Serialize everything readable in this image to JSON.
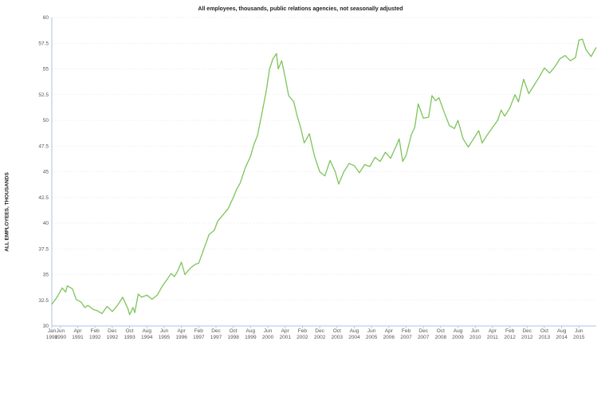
{
  "chart_data": {
    "type": "line",
    "title": "All employees, thousands, public relations agencies, not seasonally adjusted",
    "xlabel": "",
    "ylabel": "ALL EMPLOYEES, THOUSANDS",
    "ylim": [
      30,
      60
    ],
    "yticks": [
      "30",
      "32.5",
      "35",
      "37.5",
      "40",
      "42.5",
      "45",
      "47.5",
      "50",
      "52.5",
      "55",
      "57.5",
      "60"
    ],
    "xlim": [
      "1990-01",
      "2016-04"
    ],
    "xticks": [
      {
        "t": "1990-01",
        "m": "Jan",
        "y": "1990"
      },
      {
        "t": "1990-06",
        "m": "Jun",
        "y": "1990"
      },
      {
        "t": "1991-04",
        "m": "Apr",
        "y": "1991"
      },
      {
        "t": "1992-02",
        "m": "Feb",
        "y": "1992"
      },
      {
        "t": "1992-12",
        "m": "Dec",
        "y": "1992"
      },
      {
        "t": "1993-10",
        "m": "Oct",
        "y": "1993"
      },
      {
        "t": "1994-08",
        "m": "Aug",
        "y": "1994"
      },
      {
        "t": "1995-06",
        "m": "Jun",
        "y": "1995"
      },
      {
        "t": "1996-04",
        "m": "Apr",
        "y": "1996"
      },
      {
        "t": "1997-02",
        "m": "Feb",
        "y": "1997"
      },
      {
        "t": "1997-12",
        "m": "Dec",
        "y": "1997"
      },
      {
        "t": "1998-10",
        "m": "Oct",
        "y": "1998"
      },
      {
        "t": "1999-08",
        "m": "Aug",
        "y": "1999"
      },
      {
        "t": "2000-06",
        "m": "Jun",
        "y": "2000"
      },
      {
        "t": "2001-04",
        "m": "Apr",
        "y": "2001"
      },
      {
        "t": "2002-02",
        "m": "Feb",
        "y": "2002"
      },
      {
        "t": "2002-12",
        "m": "Dec",
        "y": "2002"
      },
      {
        "t": "2003-10",
        "m": "Oct",
        "y": "2003"
      },
      {
        "t": "2004-08",
        "m": "Aug",
        "y": "2004"
      },
      {
        "t": "2005-06",
        "m": "Jun",
        "y": "2005"
      },
      {
        "t": "2006-04",
        "m": "Apr",
        "y": "2006"
      },
      {
        "t": "2007-02",
        "m": "Feb",
        "y": "2007"
      },
      {
        "t": "2007-12",
        "m": "Dec",
        "y": "2007"
      },
      {
        "t": "2008-10",
        "m": "Oct",
        "y": "2008"
      },
      {
        "t": "2009-08",
        "m": "Aug",
        "y": "2009"
      },
      {
        "t": "2010-06",
        "m": "Jun",
        "y": "2010"
      },
      {
        "t": "2011-04",
        "m": "Apr",
        "y": "2011"
      },
      {
        "t": "2012-02",
        "m": "Feb",
        "y": "2012"
      },
      {
        "t": "2012-12",
        "m": "Dec",
        "y": "2012"
      },
      {
        "t": "2013-10",
        "m": "Oct",
        "y": "2013"
      },
      {
        "t": "2014-08",
        "m": "Aug",
        "y": "2014"
      },
      {
        "t": "2015-06",
        "m": "Jun",
        "y": "2015"
      }
    ],
    "grid": true,
    "series": [
      {
        "color": "#7dc45a",
        "points": [
          [
            "1990-01",
            32.1
          ],
          [
            "1990-04",
            32.8
          ],
          [
            "1990-07",
            33.7
          ],
          [
            "1990-09",
            33.3
          ],
          [
            "1990-10",
            33.9
          ],
          [
            "1991-01",
            33.6
          ],
          [
            "1991-03",
            32.6
          ],
          [
            "1991-06",
            32.3
          ],
          [
            "1991-08",
            31.8
          ],
          [
            "1991-10",
            32.0
          ],
          [
            "1992-01",
            31.6
          ],
          [
            "1992-03",
            31.5
          ],
          [
            "1992-06",
            31.2
          ],
          [
            "1992-09",
            31.9
          ],
          [
            "1992-12",
            31.4
          ],
          [
            "1993-03",
            32.0
          ],
          [
            "1993-06",
            32.8
          ],
          [
            "1993-09",
            31.7
          ],
          [
            "1993-10",
            31.1
          ],
          [
            "1993-12",
            31.8
          ],
          [
            "1994-01",
            31.3
          ],
          [
            "1994-03",
            33.1
          ],
          [
            "1994-05",
            32.8
          ],
          [
            "1994-08",
            33.0
          ],
          [
            "1994-11",
            32.6
          ],
          [
            "1995-02",
            33.0
          ],
          [
            "1995-05",
            33.9
          ],
          [
            "1995-08",
            34.6
          ],
          [
            "1995-10",
            35.1
          ],
          [
            "1995-12",
            34.8
          ],
          [
            "1996-02",
            35.4
          ],
          [
            "1996-04",
            36.2
          ],
          [
            "1996-06",
            35.0
          ],
          [
            "1996-09",
            35.6
          ],
          [
            "1996-12",
            36.0
          ],
          [
            "1997-02",
            36.1
          ],
          [
            "1997-05",
            37.5
          ],
          [
            "1997-08",
            38.9
          ],
          [
            "1997-11",
            39.3
          ],
          [
            "1998-01",
            40.2
          ],
          [
            "1998-04",
            40.8
          ],
          [
            "1998-07",
            41.4
          ],
          [
            "1998-10",
            42.5
          ],
          [
            "1998-12",
            43.3
          ],
          [
            "1999-02",
            43.9
          ],
          [
            "1999-05",
            45.4
          ],
          [
            "1999-08",
            46.5
          ],
          [
            "1999-10",
            47.7
          ],
          [
            "1999-12",
            48.5
          ],
          [
            "2000-02",
            50.2
          ],
          [
            "2000-05",
            52.8
          ],
          [
            "2000-07",
            55.0
          ],
          [
            "2000-09",
            56.0
          ],
          [
            "2000-11",
            56.5
          ],
          [
            "2000-12",
            55.0
          ],
          [
            "2001-02",
            55.8
          ],
          [
            "2001-04",
            54.2
          ],
          [
            "2001-06",
            52.4
          ],
          [
            "2001-09",
            51.8
          ],
          [
            "2001-11",
            50.4
          ],
          [
            "2002-01",
            49.3
          ],
          [
            "2002-03",
            47.8
          ],
          [
            "2002-06",
            48.7
          ],
          [
            "2002-09",
            46.5
          ],
          [
            "2002-12",
            45.0
          ],
          [
            "2003-03",
            44.6
          ],
          [
            "2003-06",
            46.1
          ],
          [
            "2003-09",
            45.0
          ],
          [
            "2003-11",
            43.8
          ],
          [
            "2004-02",
            45.0
          ],
          [
            "2004-05",
            45.8
          ],
          [
            "2004-08",
            45.6
          ],
          [
            "2004-11",
            44.9
          ],
          [
            "2005-02",
            45.7
          ],
          [
            "2005-05",
            45.5
          ],
          [
            "2005-08",
            46.4
          ],
          [
            "2005-11",
            46.0
          ],
          [
            "2006-02",
            46.9
          ],
          [
            "2006-05",
            46.3
          ],
          [
            "2006-08",
            47.4
          ],
          [
            "2006-10",
            48.2
          ],
          [
            "2006-12",
            46.0
          ],
          [
            "2007-02",
            46.6
          ],
          [
            "2007-05",
            48.6
          ],
          [
            "2007-07",
            49.3
          ],
          [
            "2007-09",
            51.6
          ],
          [
            "2007-12",
            50.2
          ],
          [
            "2008-03",
            50.3
          ],
          [
            "2008-05",
            52.4
          ],
          [
            "2008-07",
            51.9
          ],
          [
            "2008-09",
            52.2
          ],
          [
            "2008-12",
            50.8
          ],
          [
            "2009-03",
            49.5
          ],
          [
            "2009-06",
            49.2
          ],
          [
            "2009-08",
            50.0
          ],
          [
            "2009-11",
            48.2
          ],
          [
            "2010-02",
            47.4
          ],
          [
            "2010-05",
            48.2
          ],
          [
            "2010-08",
            49.0
          ],
          [
            "2010-10",
            47.8
          ],
          [
            "2011-01",
            48.6
          ],
          [
            "2011-04",
            49.3
          ],
          [
            "2011-07",
            50.0
          ],
          [
            "2011-09",
            51.0
          ],
          [
            "2011-11",
            50.4
          ],
          [
            "2012-02",
            51.2
          ],
          [
            "2012-05",
            52.5
          ],
          [
            "2012-07",
            51.8
          ],
          [
            "2012-10",
            54.0
          ],
          [
            "2013-01",
            52.6
          ],
          [
            "2013-04",
            53.4
          ],
          [
            "2013-07",
            54.2
          ],
          [
            "2013-10",
            55.1
          ],
          [
            "2014-01",
            54.6
          ],
          [
            "2014-04",
            55.2
          ],
          [
            "2014-07",
            56.0
          ],
          [
            "2014-10",
            56.3
          ],
          [
            "2015-01",
            55.8
          ],
          [
            "2015-04",
            56.1
          ],
          [
            "2015-06",
            57.8
          ],
          [
            "2015-08",
            57.9
          ],
          [
            "2015-10",
            56.9
          ],
          [
            "2016-01",
            56.2
          ],
          [
            "2016-04",
            57.1
          ]
        ]
      }
    ]
  }
}
